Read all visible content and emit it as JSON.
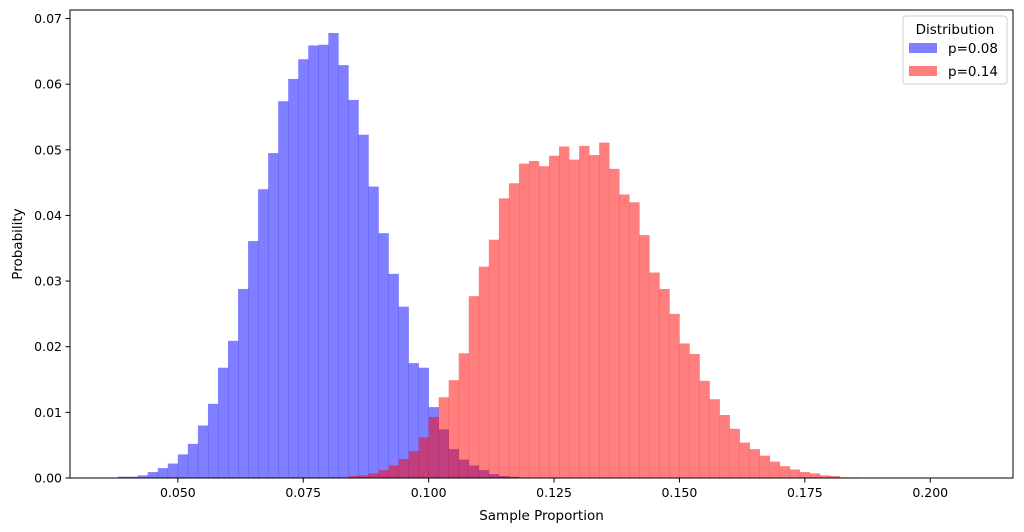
{
  "chart_data": {
    "type": "histogram",
    "title": "",
    "xlabel": "Sample Proportion",
    "ylabel": "Probability",
    "xlim": [
      0.0285,
      0.2165
    ],
    "ylim": [
      0,
      0.0713
    ],
    "xticks": [
      0.05,
      0.075,
      0.1,
      0.125,
      0.15,
      0.175,
      0.2
    ],
    "xtick_labels": [
      "0.050",
      "0.075",
      "0.100",
      "0.125",
      "0.150",
      "0.175",
      "0.200"
    ],
    "yticks": [
      0,
      0.01,
      0.02,
      0.03,
      0.04,
      0.05,
      0.06,
      0.07
    ],
    "ytick_labels": [
      "0.00",
      "0.01",
      "0.02",
      "0.03",
      "0.04",
      "0.05",
      "0.06",
      "0.07"
    ],
    "grid": false,
    "legend": {
      "title": "Distribution",
      "position": "top-right"
    },
    "series": [
      {
        "name": "p=0.08",
        "color": "#0000ff",
        "alpha": 0.5,
        "bin_start": 0.038,
        "bin_width": 0.002,
        "values": [
          0.0002,
          0.0002,
          0.0004,
          0.0009,
          0.0015,
          0.0022,
          0.0036,
          0.0052,
          0.008,
          0.0113,
          0.0168,
          0.0209,
          0.0288,
          0.0361,
          0.044,
          0.0495,
          0.0574,
          0.0608,
          0.0638,
          0.0659,
          0.066,
          0.0678,
          0.0629,
          0.0576,
          0.0523,
          0.0444,
          0.0373,
          0.0311,
          0.0261,
          0.0175,
          0.0168,
          0.0108,
          0.0074,
          0.0044,
          0.0028,
          0.0019,
          0.0012,
          0.0006,
          0.0003,
          0.0002
        ]
      },
      {
        "name": "p=0.14",
        "color": "#ff0000",
        "alpha": 0.5,
        "bin_start": 0.078,
        "bin_width": 0.002,
        "values": [
          0.0001,
          0.0001,
          0.0001,
          0.0003,
          0.0004,
          0.0007,
          0.0012,
          0.0019,
          0.0029,
          0.0041,
          0.0062,
          0.0093,
          0.0123,
          0.0149,
          0.019,
          0.0277,
          0.0322,
          0.0363,
          0.0426,
          0.0449,
          0.0479,
          0.0483,
          0.0475,
          0.0491,
          0.0505,
          0.0485,
          0.0506,
          0.0492,
          0.0511,
          0.0471,
          0.0432,
          0.042,
          0.037,
          0.0313,
          0.0288,
          0.025,
          0.0205,
          0.0189,
          0.0148,
          0.012,
          0.0096,
          0.0075,
          0.0054,
          0.0044,
          0.0034,
          0.0025,
          0.0018,
          0.0013,
          0.0009,
          0.0007,
          0.0004,
          0.0003,
          0.0001,
          0.0001
        ]
      }
    ]
  }
}
